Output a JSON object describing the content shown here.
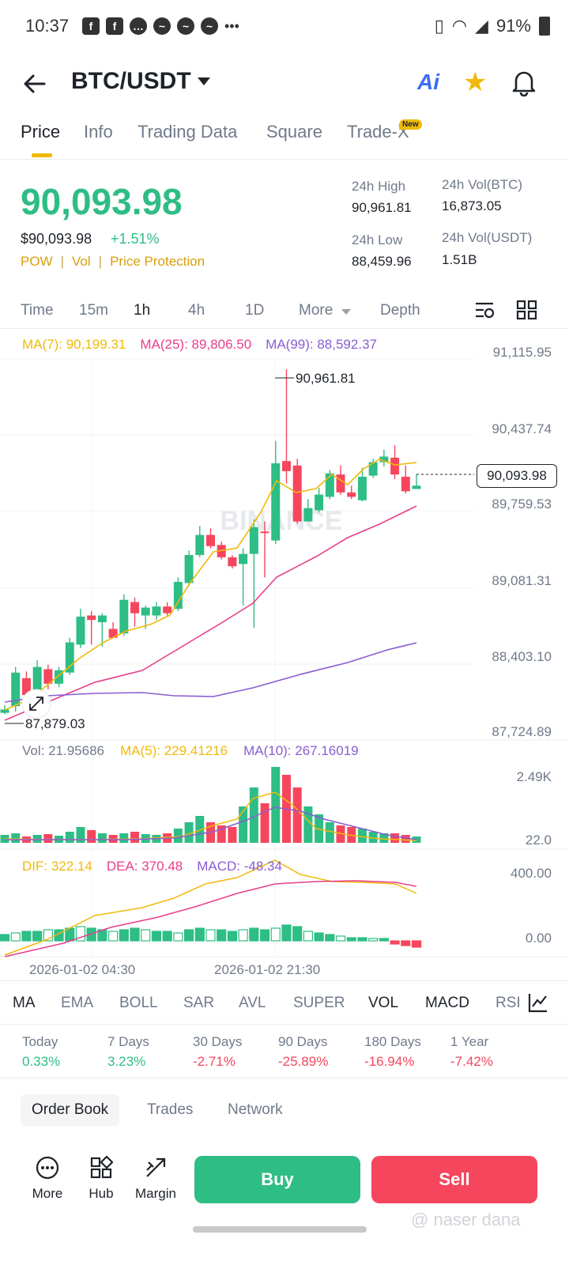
{
  "status_bar": {
    "time": "10:37",
    "battery": "91%"
  },
  "header": {
    "pair": "BTC/USDT"
  },
  "tabs": [
    {
      "label": "Price",
      "active": true
    },
    {
      "label": "Info"
    },
    {
      "label": "Trading Data"
    },
    {
      "label": "Square"
    },
    {
      "label": "Trade-X",
      "badge": "New"
    }
  ],
  "price": {
    "last": "90,093.98",
    "usd": "$90,093.98",
    "change": "+1.51%",
    "tags": [
      "POW",
      "Vol",
      "Price Protection"
    ]
  },
  "stats": {
    "high_label": "24h High",
    "high": "90,961.81",
    "low_label": "24h Low",
    "low": "88,459.96",
    "vol_btc_label": "24h Vol(BTC)",
    "vol_btc": "16,873.05",
    "vol_usdt_label": "24h Vol(USDT)",
    "vol_usdt": "1.51B"
  },
  "intervals": [
    {
      "label": "Time"
    },
    {
      "label": "15m"
    },
    {
      "label": "1h",
      "active": true
    },
    {
      "label": "4h"
    },
    {
      "label": "1D"
    },
    {
      "label": "More"
    },
    {
      "label": "Depth"
    }
  ],
  "chart": {
    "ma7": "MA(7): 90,199.31",
    "ma25": "MA(25): 89,806.50",
    "ma99": "MA(99): 88,592.37",
    "price_axis": [
      "91,115.95",
      "90,437.74",
      "89,759.53",
      "89,081.31",
      "88,403.10",
      "87,724.89"
    ],
    "current_tag": "90,093.98",
    "high_marker": "90,961.81",
    "low_marker": "87,879.03",
    "watermark": "BINANCE",
    "vol_legend": {
      "vol": "Vol: 21.95686",
      "ma5": "MA(5): 229.41216",
      "ma10": "MA(10): 267.16019"
    },
    "vol_axis": [
      "2.49K",
      "22.0"
    ],
    "macd_legend": {
      "dif": "DIF: 322.14",
      "dea": "DEA: 370.48",
      "macd": "MACD: -48.34"
    },
    "macd_axis": [
      "400.00",
      "0.00"
    ],
    "dates": [
      "2026-01-02 04:30",
      "2026-01-02 21:30"
    ]
  },
  "indicators": [
    {
      "label": "MA",
      "active": true
    },
    {
      "label": "EMA"
    },
    {
      "label": "BOLL"
    },
    {
      "label": "SAR"
    },
    {
      "label": "AVL"
    },
    {
      "label": "SUPER"
    },
    {
      "label": "VOL",
      "active": true
    },
    {
      "label": "MACD",
      "active": true
    },
    {
      "label": "RSI"
    }
  ],
  "performance": [
    {
      "label": "Today",
      "value": "0.33%",
      "dir": "up"
    },
    {
      "label": "7 Days",
      "value": "3.23%",
      "dir": "up"
    },
    {
      "label": "30 Days",
      "value": "-2.71%",
      "dir": "down"
    },
    {
      "label": "90 Days",
      "value": "-25.89%",
      "dir": "down"
    },
    {
      "label": "180 Days",
      "value": "-16.94%",
      "dir": "down"
    },
    {
      "label": "1 Year",
      "value": "-7.42%",
      "dir": "down"
    }
  ],
  "book_tabs": [
    {
      "label": "Order Book",
      "active": true
    },
    {
      "label": "Trades"
    },
    {
      "label": "Network"
    }
  ],
  "bottom_nav": [
    {
      "label": "More"
    },
    {
      "label": "Hub"
    },
    {
      "label": "Margin"
    }
  ],
  "actions": {
    "buy": "Buy",
    "sell": "Sell"
  },
  "watermark_user": "@ naser dana",
  "colors": {
    "up": "#2ebd85",
    "down": "#f6465d",
    "accent": "#f0b90b",
    "ma7": "#f0b90b",
    "ma25": "#e83e8c",
    "ma99": "#8a5cd1"
  }
}
